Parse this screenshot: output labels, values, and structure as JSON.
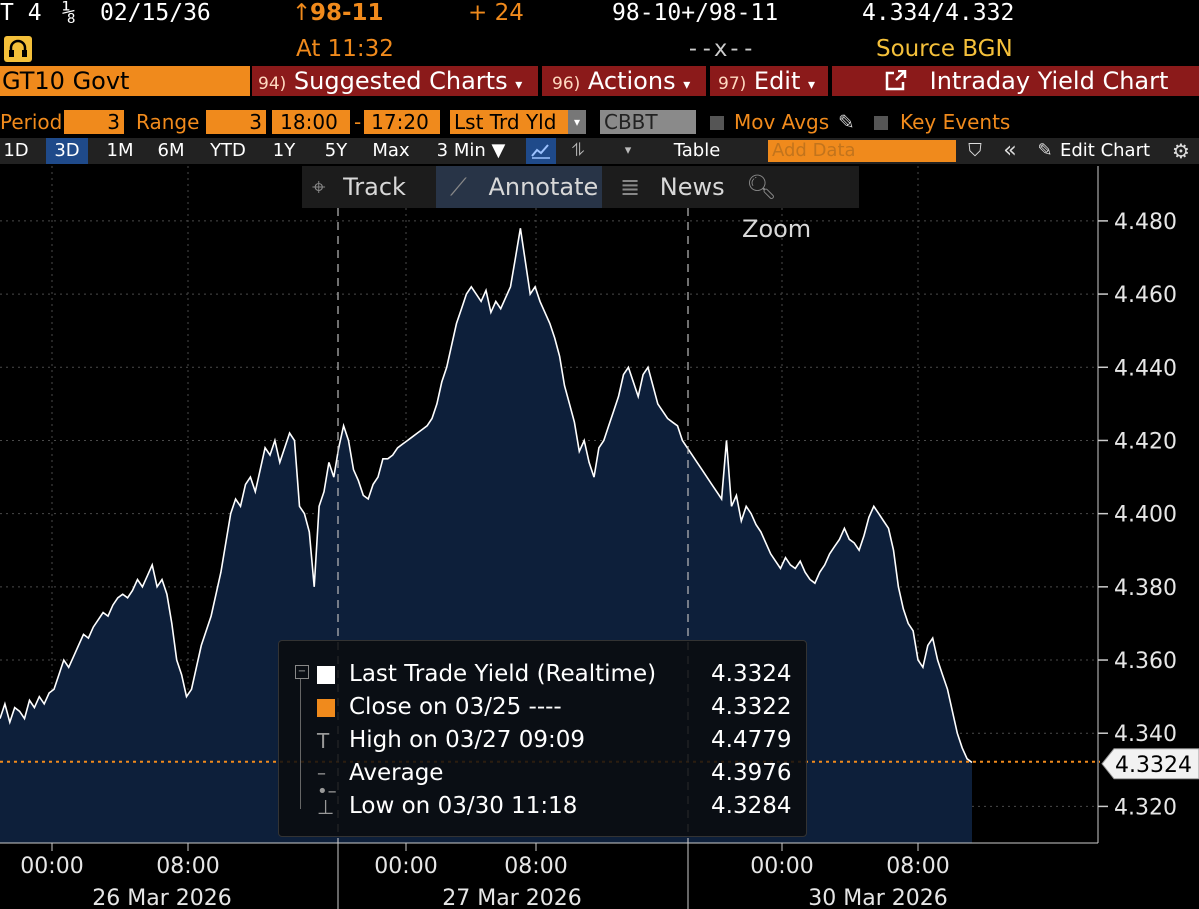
{
  "header": {
    "ticker_prefix": "T 4",
    "coupon_frac": "⅛",
    "maturity": "02/15/36",
    "arrow": "↑",
    "price": "98-11",
    "change": "+ 24",
    "bid_ask": "98-10+/98-11",
    "yields": "4.334/4.332",
    "time": "At 11:32",
    "size": "--x--",
    "source": "Source BGN"
  },
  "titlebar": {
    "security": "GT10 Govt",
    "menu1_num": "94)",
    "menu1": "Suggested Charts",
    "menu2_num": "96)",
    "menu2": "Actions",
    "menu3_num": "97)",
    "menu3": "Edit",
    "chart_title": "Intraday Yield Chart"
  },
  "period_bar": {
    "period_label": "Period",
    "period_value": "3",
    "range_label": "Range",
    "range_value": "3",
    "start_time": "18:00",
    "dash": "-",
    "end_time": "17:20",
    "field": "Lst Trd Yld",
    "source": "CBBT",
    "mov_avgs": "Mov Avgs",
    "key_events": "Key Events"
  },
  "button_bar": {
    "ranges": [
      "1D",
      "3D",
      "1M",
      "6M",
      "YTD",
      "1Y",
      "5Y",
      "Max"
    ],
    "selected": "3D",
    "interval": "3 Min ▼",
    "table": "Table",
    "add_data_placeholder": "Add Data",
    "edit_chart": "Edit Chart"
  },
  "chart_tools": [
    "Track",
    "Annotate",
    "News",
    "Zoom"
  ],
  "chart_data": {
    "type": "area",
    "ylim": [
      4.31,
      4.495
    ],
    "y_ticks": [
      "4.480",
      "4.460",
      "4.440",
      "4.420",
      "4.400",
      "4.380",
      "4.360",
      "4.340",
      "4.320"
    ],
    "x_ticks": [
      "00:00",
      "08:00",
      "00:00",
      "08:00",
      "00:00",
      "08:00"
    ],
    "date_labels": [
      "26 Mar 2026",
      "27 Mar 2026",
      "30 Mar 2026"
    ],
    "last_value_label": "4.3324",
    "reference_line": 4.3322,
    "colors": {
      "fill": "#0d1f3a",
      "line": "#ffffff",
      "reference": "#f08a1c"
    },
    "series": [
      {
        "values": [
          4.344,
          4.348,
          4.343,
          4.347,
          4.346,
          4.344,
          4.349,
          4.347,
          4.35,
          4.348,
          4.351,
          4.352,
          4.356,
          4.36,
          4.358,
          4.361,
          4.364,
          4.367,
          4.366,
          4.369,
          4.371,
          4.373,
          4.372,
          4.375,
          4.377,
          4.378,
          4.377,
          4.379,
          4.382,
          4.38,
          4.383,
          4.386,
          4.38,
          4.382,
          4.378,
          4.37,
          4.36,
          4.356,
          4.35,
          4.352,
          4.358,
          4.364,
          4.368,
          4.372,
          4.378,
          4.384,
          4.392,
          4.4,
          4.404,
          4.402,
          4.408,
          4.41,
          4.406,
          4.412,
          4.418,
          4.416,
          4.42,
          4.414,
          4.418,
          4.422,
          4.42,
          4.402,
          4.4,
          4.395,
          4.38,
          4.402,
          4.406,
          4.414,
          4.41,
          4.418,
          4.424,
          4.42,
          4.412,
          4.409,
          4.405,
          4.404,
          4.408,
          4.41,
          4.415,
          4.415,
          4.416,
          4.418,
          4.419,
          4.42,
          4.421,
          4.422,
          4.423,
          4.424,
          4.426,
          4.43,
          4.436,
          4.44,
          4.446,
          4.452,
          4.456,
          4.46,
          4.462,
          4.46,
          4.458,
          4.461,
          4.455,
          4.458,
          4.456,
          4.459,
          4.462,
          4.47,
          4.478,
          4.469,
          4.46,
          4.462,
          4.458,
          4.455,
          4.452,
          4.448,
          4.443,
          4.435,
          4.43,
          4.425,
          4.417,
          4.42,
          4.414,
          4.41,
          4.418,
          4.42,
          4.424,
          4.428,
          4.432,
          4.438,
          4.44,
          4.436,
          4.432,
          4.438,
          4.44,
          4.435,
          4.43,
          4.428,
          4.426,
          4.425,
          4.424,
          4.42,
          4.418,
          4.416,
          4.414,
          4.412,
          4.41,
          4.408,
          4.406,
          4.404,
          4.42,
          4.402,
          4.405,
          4.398,
          4.402,
          4.4,
          4.397,
          4.395,
          4.392,
          4.389,
          4.387,
          4.385,
          4.388,
          4.386,
          4.385,
          4.387,
          4.384,
          4.382,
          4.381,
          4.384,
          4.386,
          4.389,
          4.391,
          4.393,
          4.396,
          4.393,
          4.392,
          4.39,
          4.394,
          4.399,
          4.402,
          4.4,
          4.398,
          4.396,
          4.39,
          4.38,
          4.374,
          4.37,
          4.368,
          4.36,
          4.358,
          4.364,
          4.366,
          4.36,
          4.356,
          4.352,
          4.346,
          4.34,
          4.336,
          4.333,
          4.332
        ]
      }
    ]
  },
  "legend": [
    {
      "icon": "square",
      "color": "#ffffff",
      "label": "Last Trade Yield (Realtime)",
      "value": "4.3324"
    },
    {
      "icon": "square",
      "color": "#f08a1c",
      "label": "Close on 03/25 ----",
      "value": "4.3322"
    },
    {
      "icon": "high",
      "color": "#bbbbbb",
      "label": "High on 03/27 09:09",
      "value": "4.4779"
    },
    {
      "icon": "avg",
      "color": "#bbbbbb",
      "label": "Average",
      "value": "4.3976"
    },
    {
      "icon": "low",
      "color": "#bbbbbb",
      "label": "Low on 03/30 11:18",
      "value": "4.3284"
    }
  ]
}
